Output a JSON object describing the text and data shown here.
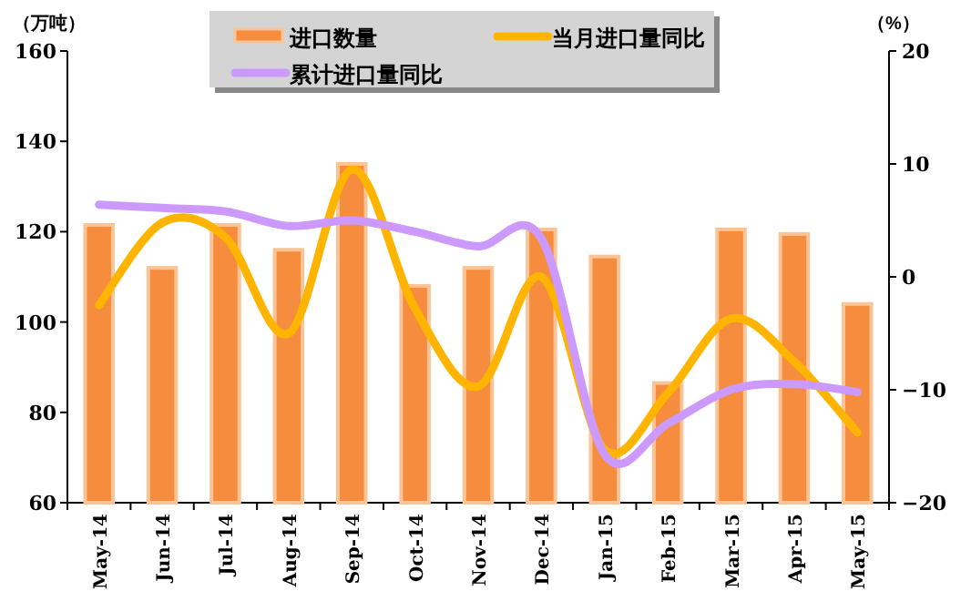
{
  "chart_data": {
    "type": "bar",
    "xlabel": null,
    "ylabel": "（万吨）",
    "y2label": "（%）",
    "categories": [
      "May-14",
      "Jun-14",
      "Jul-14",
      "Aug-14",
      "Sep-14",
      "Oct-14",
      "Nov-14",
      "Dec-14",
      "Jan-15",
      "Feb-15",
      "Mar-15",
      "Apr-15",
      "May-15"
    ],
    "series": [
      {
        "name": "进口数量",
        "color": "#f68c3e",
        "values": [
          121.5,
          112,
          121.5,
          116,
          135,
          108,
          112,
          120.5,
          114.5,
          86.5,
          120.5,
          119.5,
          104
        ]
      },
      {
        "name": "当月进口量同比",
        "type": "line",
        "axis": "y2",
        "color": "#ffb400",
        "values": [
          -2.5,
          4.8,
          3.5,
          -5,
          9.5,
          -2.8,
          -9.7,
          0,
          -15.3,
          -10.3,
          -3.7,
          -7.5,
          -13.8
        ]
      },
      {
        "name": "累计进口量同比",
        "type": "line",
        "axis": "y2",
        "color": "#cc99ff",
        "values": [
          6.4,
          6.1,
          5.8,
          4.5,
          5,
          4,
          2.7,
          3.4,
          -15.7,
          -13,
          -10,
          -9.5,
          -10.2
        ]
      }
    ],
    "ylim": [
      60,
      160
    ],
    "yticks": [
      60,
      80,
      100,
      120,
      140,
      160
    ],
    "y2lim": [
      -20,
      20
    ],
    "y2ticks": [
      -20,
      -10,
      0,
      10,
      20
    ],
    "grid": false,
    "legend": "top",
    "marker": "none",
    "line_style": "solid"
  }
}
